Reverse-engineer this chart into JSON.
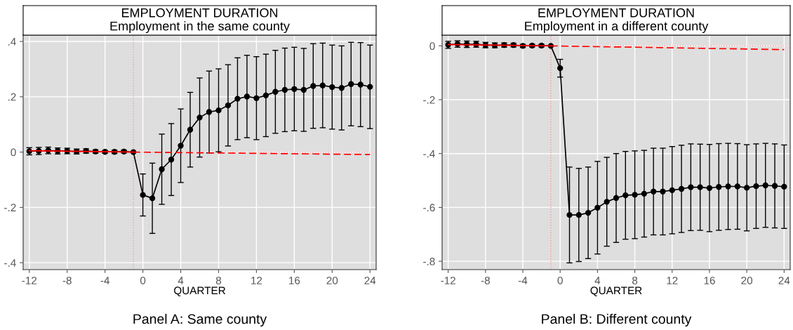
{
  "chart_data": [
    {
      "type": "line",
      "title": "EMPLOYMENT DURATION",
      "subtitle": "Employment in the same county",
      "xlabel": "QUARTER",
      "annotations": [
        "Panel A: Same county"
      ],
      "xlim": [
        -12.65,
        24.65
      ],
      "xticks": [
        -12,
        -8,
        -4,
        0,
        4,
        8,
        12,
        16,
        20,
        24
      ],
      "ylim": [
        -0.425,
        0.423
      ],
      "yticks": [
        {
          "value": -0.4,
          "label": "-.4"
        },
        {
          "value": -0.2,
          "label": "-.2"
        },
        0,
        {
          "value": 0.2,
          "label": ".2"
        },
        {
          "value": 0.4,
          "label": ".4"
        }
      ],
      "grid": true,
      "ref_lines": [
        {
          "axis": "y",
          "value": 0,
          "color": "#ff9999",
          "line_style": "dotted"
        },
        {
          "axis": "x",
          "value": -1,
          "color": "#ff9999",
          "line_style": "dotted"
        }
      ],
      "series": [
        {
          "color": "#000000",
          "marker": "circle",
          "line_style": "solid",
          "x": [
            -12,
            -11,
            -10,
            -9,
            -8,
            -7,
            -6,
            -5,
            -4,
            -3,
            -2,
            -1,
            0,
            1,
            2,
            3,
            4,
            5,
            6,
            7,
            8,
            9,
            10,
            11,
            12,
            13,
            14,
            15,
            16,
            17,
            18,
            19,
            20,
            21,
            22,
            23,
            24
          ],
          "values": [
            0.003,
            0.004,
            0.006,
            0.004,
            0.004,
            0.002,
            0.004,
            0.002,
            0.001,
            0.001,
            0.002,
            0,
            -0.155,
            -0.167,
            -0.062,
            -0.027,
            0.023,
            0.081,
            0.125,
            0.145,
            0.151,
            0.169,
            0.193,
            0.201,
            0.195,
            0.205,
            0.218,
            0.225,
            0.228,
            0.225,
            0.239,
            0.241,
            0.235,
            0.232,
            0.246,
            0.244,
            0.236
          ],
          "errors": [
            0.013,
            0.013,
            0.012,
            0.011,
            0.01,
            0.009,
            0.008,
            0.006,
            0.005,
            0.006,
            0.005,
            null,
            0.076,
            0.127,
            0.127,
            0.13,
            0.133,
            0.135,
            0.143,
            0.148,
            0.15,
            0.147,
            0.148,
            0.149,
            0.15,
            0.149,
            0.15,
            0.151,
            0.151,
            0.15,
            0.153,
            0.153,
            0.152,
            0.152,
            0.151,
            0.152,
            0.151
          ]
        },
        {
          "color": "#ff0000",
          "marker": "none",
          "line_style": "solid",
          "x": [
            -12,
            -1
          ],
          "values": [
            0.005,
            0
          ]
        },
        {
          "color": "#ff0000",
          "marker": "none",
          "line_style": "dashed",
          "x": [
            -1,
            24
          ],
          "values": [
            0,
            -0.009
          ]
        }
      ]
    },
    {
      "type": "line",
      "title": "EMPLOYMENT DURATION",
      "subtitle": "Employment in a different county",
      "xlabel": "QUARTER",
      "annotations": [
        "Panel B: Different county"
      ],
      "xlim": [
        -12.65,
        24.65
      ],
      "xticks": [
        -12,
        -8,
        -4,
        0,
        4,
        8,
        12,
        16,
        20,
        24
      ],
      "ylim": [
        -0.831,
        0.04
      ],
      "yticks": [
        {
          "value": -0.8,
          "label": "-.8"
        },
        {
          "value": -0.6,
          "label": "-.6"
        },
        {
          "value": -0.4,
          "label": "-.4"
        },
        {
          "value": -0.2,
          "label": "-.2"
        },
        0
      ],
      "grid": true,
      "ref_lines": [
        {
          "axis": "y",
          "value": 0,
          "color": "#ff9999",
          "line_style": "dotted"
        },
        {
          "axis": "x",
          "value": -1,
          "color": "#ff9999",
          "line_style": "dotted"
        }
      ],
      "series": [
        {
          "color": "#000000",
          "marker": "circle",
          "line_style": "solid",
          "x": [
            -12,
            -11,
            -10,
            -9,
            -8,
            -7,
            -6,
            -5,
            -4,
            -3,
            -2,
            -1,
            0,
            1,
            2,
            3,
            4,
            5,
            6,
            7,
            8,
            9,
            10,
            11,
            12,
            13,
            14,
            15,
            16,
            17,
            18,
            19,
            20,
            21,
            22,
            23,
            24
          ],
          "values": [
            0.004,
            0.007,
            0.006,
            0.006,
            0.003,
            0.002,
            0.003,
            0.003,
            0,
            0.001,
            0.001,
            0,
            -0.083,
            -0.628,
            -0.628,
            -0.62,
            -0.601,
            -0.579,
            -0.565,
            -0.555,
            -0.553,
            -0.549,
            -0.541,
            -0.541,
            -0.536,
            -0.531,
            -0.525,
            -0.525,
            -0.528,
            -0.524,
            -0.522,
            -0.522,
            -0.527,
            -0.521,
            -0.518,
            -0.52,
            -0.523
          ],
          "errors": [
            0.013,
            0.012,
            0.012,
            0.011,
            0.01,
            0.009,
            0.008,
            0.007,
            0.006,
            0.005,
            0.005,
            null,
            0.033,
            0.178,
            0.173,
            0.17,
            0.172,
            0.165,
            0.165,
            0.163,
            0.163,
            0.161,
            0.161,
            0.161,
            0.162,
            0.162,
            0.161,
            0.16,
            0.162,
            0.161,
            0.16,
            0.159,
            0.16,
            0.157,
            0.156,
            0.156,
            0.155
          ]
        },
        {
          "color": "#ff0000",
          "marker": "none",
          "line_style": "solid",
          "x": [
            -12,
            -1
          ],
          "values": [
            0.005,
            0
          ]
        },
        {
          "color": "#ff0000",
          "marker": "none",
          "line_style": "dashed",
          "x": [
            -1,
            24
          ],
          "values": [
            0,
            -0.014
          ]
        }
      ]
    }
  ]
}
